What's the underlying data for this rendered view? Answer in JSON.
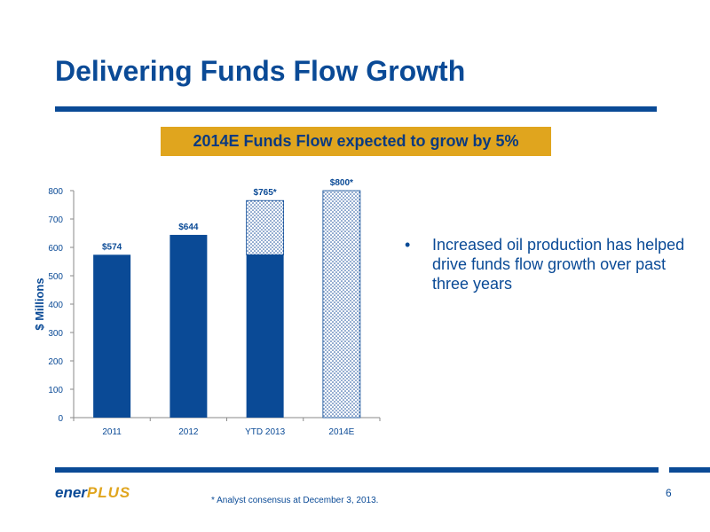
{
  "slide": {
    "title": "Delivering Funds Flow Growth",
    "callout": "2014E Funds Flow expected to grow by 5%",
    "bullets": [
      "Increased oil production has helped drive funds flow growth over past three years"
    ],
    "bullet_marker": "•",
    "footnote": "* Analyst consensus at December 3, 2013.",
    "page_number": "6",
    "logo": {
      "part1": "ener",
      "part2": "PLUS"
    }
  },
  "colors": {
    "primary_blue": "#0a4a96",
    "gold": "#e0a51e",
    "hatch": "#1a4f9c"
  },
  "chart_data": {
    "type": "bar",
    "categories": [
      "2011",
      "2012",
      "YTD 2013",
      "2014E"
    ],
    "series": [
      {
        "values": [
          574,
          644,
          574,
          0
        ],
        "fill": "solid"
      },
      {
        "values": [
          0,
          0,
          191,
          800
        ],
        "fill": "hatched"
      }
    ],
    "data_labels": [
      "$574",
      "$644",
      "$765*",
      "$800*"
    ],
    "ylabel": "$ Millions",
    "xlabel": "",
    "ylim": [
      0,
      800
    ],
    "yticks": [
      0,
      100,
      200,
      300,
      400,
      500,
      600,
      700,
      800
    ],
    "grid": false,
    "legend": "none"
  }
}
